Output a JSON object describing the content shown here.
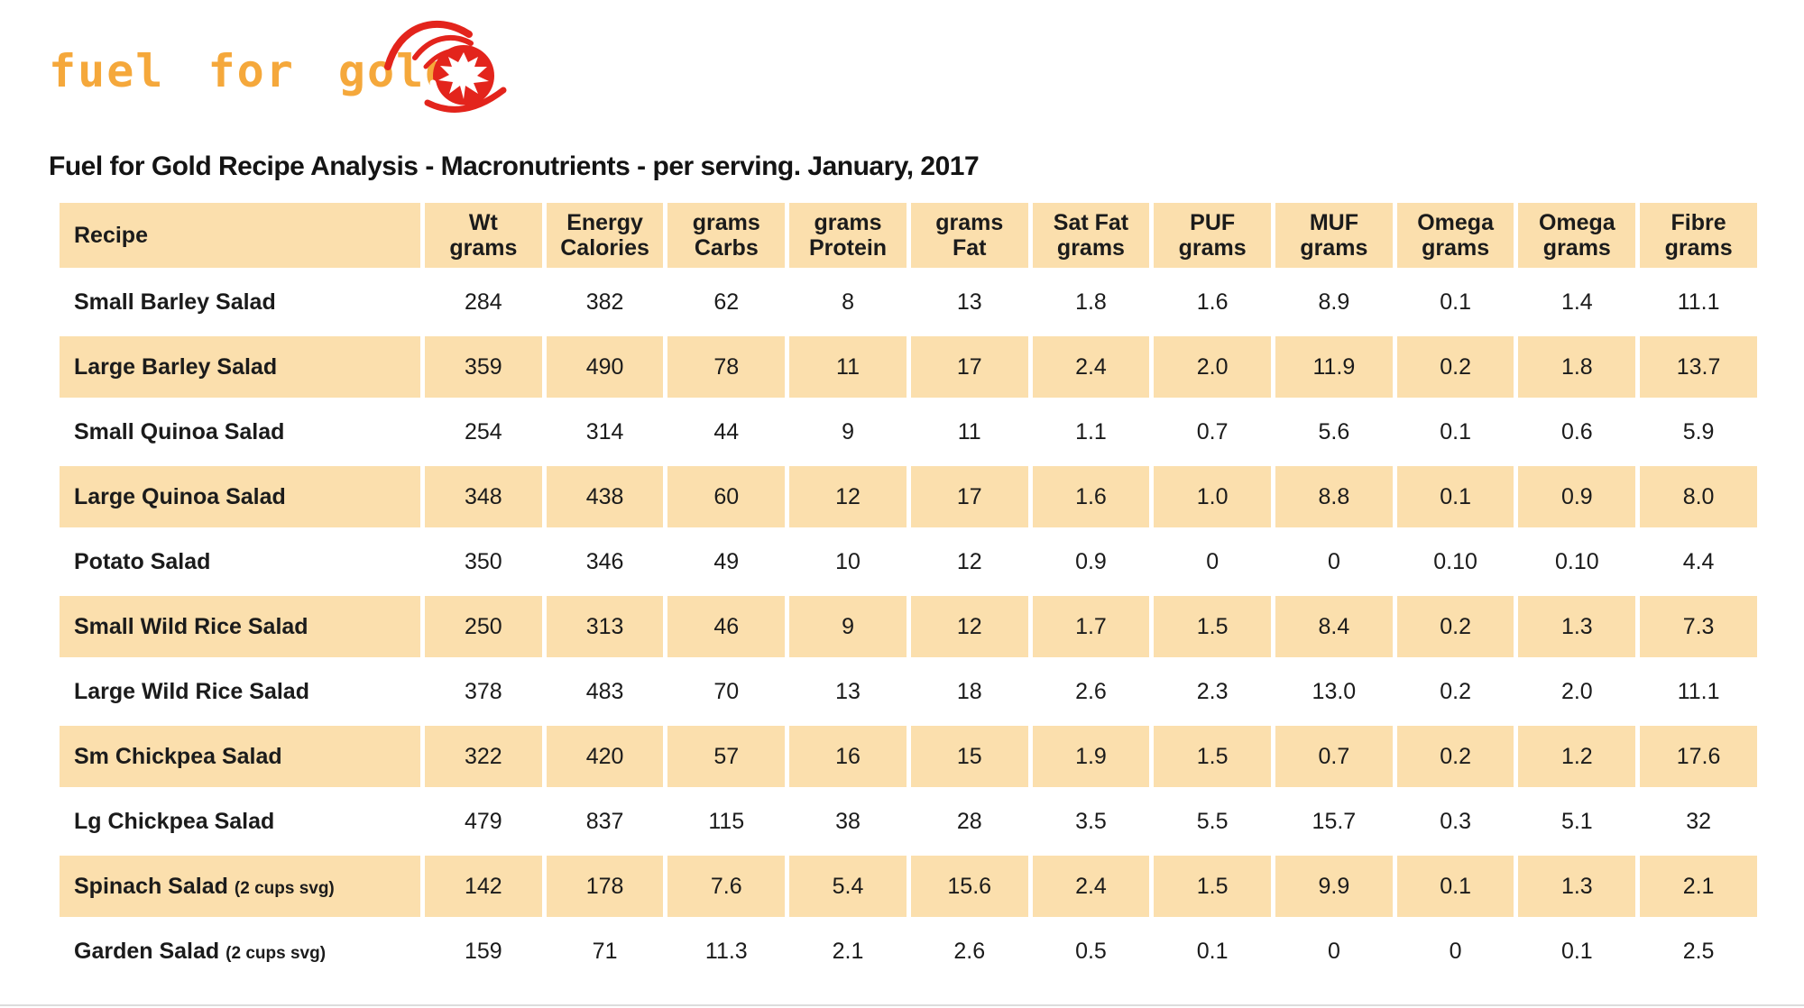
{
  "logo": {
    "text": "fuel for gold",
    "icon": "maple-leaf-flame-icon",
    "gold_color": "#F5A83B",
    "red_color": "#E3241C"
  },
  "title": "Fuel for Gold Recipe Analysis - Macronutrients - per serving. January, 2017",
  "colors": {
    "band": "#FBDFAD",
    "text": "#1B1B1B",
    "background": "#FFFFFF"
  },
  "table": {
    "columns": [
      {
        "id": "recipe",
        "lines": [
          "Recipe"
        ]
      },
      {
        "id": "wt",
        "lines": [
          "Wt",
          "grams"
        ]
      },
      {
        "id": "energy",
        "lines": [
          "Energy",
          "Calories"
        ]
      },
      {
        "id": "carbs",
        "lines": [
          "grams",
          "Carbs"
        ]
      },
      {
        "id": "protein",
        "lines": [
          "grams",
          "Protein"
        ]
      },
      {
        "id": "fat",
        "lines": [
          "grams",
          "Fat"
        ]
      },
      {
        "id": "satfat",
        "lines": [
          "Sat Fat",
          "grams"
        ]
      },
      {
        "id": "puf",
        "lines": [
          "PUF",
          "grams"
        ]
      },
      {
        "id": "muf",
        "lines": [
          "MUF",
          "grams"
        ]
      },
      {
        "id": "omega-1",
        "lines": [
          "Omega",
          "grams"
        ]
      },
      {
        "id": "omega-2",
        "lines": [
          "Omega",
          "grams"
        ]
      },
      {
        "id": "fibre",
        "lines": [
          "Fibre",
          "grams"
        ]
      }
    ],
    "rows": [
      {
        "recipe": "Small Barley Salad",
        "suffix": "",
        "values": [
          "284",
          "382",
          "62",
          "8",
          "13",
          "1.8",
          "1.6",
          "8.9",
          "0.1",
          "1.4",
          "11.1"
        ]
      },
      {
        "recipe": "Large Barley Salad",
        "suffix": "",
        "values": [
          "359",
          "490",
          "78",
          "11",
          "17",
          "2.4",
          "2.0",
          "11.9",
          "0.2",
          "1.8",
          "13.7"
        ]
      },
      {
        "recipe": "Small Quinoa Salad",
        "suffix": "",
        "values": [
          "254",
          "314",
          "44",
          "9",
          "11",
          "1.1",
          "0.7",
          "5.6",
          "0.1",
          "0.6",
          "5.9"
        ]
      },
      {
        "recipe": "Large Quinoa Salad",
        "suffix": "",
        "values": [
          "348",
          "438",
          "60",
          "12",
          "17",
          "1.6",
          "1.0",
          "8.8",
          "0.1",
          "0.9",
          "8.0"
        ]
      },
      {
        "recipe": "Potato Salad",
        "suffix": "",
        "values": [
          "350",
          "346",
          "49",
          "10",
          "12",
          "0.9",
          "0",
          "0",
          "0.10",
          "0.10",
          "4.4"
        ]
      },
      {
        "recipe": "Small Wild Rice Salad",
        "suffix": "",
        "values": [
          "250",
          "313",
          "46",
          "9",
          "12",
          "1.7",
          "1.5",
          "8.4",
          "0.2",
          "1.3",
          "7.3"
        ]
      },
      {
        "recipe": "Large Wild Rice Salad",
        "suffix": "",
        "values": [
          "378",
          "483",
          "70",
          "13",
          "18",
          "2.6",
          "2.3",
          "13.0",
          "0.2",
          "2.0",
          "11.1"
        ]
      },
      {
        "recipe": "Sm Chickpea Salad",
        "suffix": "",
        "values": [
          "322",
          "420",
          "57",
          "16",
          "15",
          "1.9",
          "1.5",
          "0.7",
          "0.2",
          "1.2",
          "17.6"
        ]
      },
      {
        "recipe": "Lg Chickpea Salad",
        "suffix": "",
        "values": [
          "479",
          "837",
          "115",
          "38",
          "28",
          "3.5",
          "5.5",
          "15.7",
          "0.3",
          "5.1",
          "32"
        ]
      },
      {
        "recipe": "Spinach Salad",
        "suffix": "(2 cups svg)",
        "values": [
          "142",
          "178",
          "7.6",
          "5.4",
          "15.6",
          "2.4",
          "1.5",
          "9.9",
          "0.1",
          "1.3",
          "2.1"
        ]
      },
      {
        "recipe": "Garden Salad",
        "suffix": "(2 cups svg)",
        "values": [
          "159",
          "71",
          "11.3",
          "2.1",
          "2.6",
          "0.5",
          "0.1",
          "0",
          "0",
          "0.1",
          "2.5"
        ]
      }
    ]
  }
}
